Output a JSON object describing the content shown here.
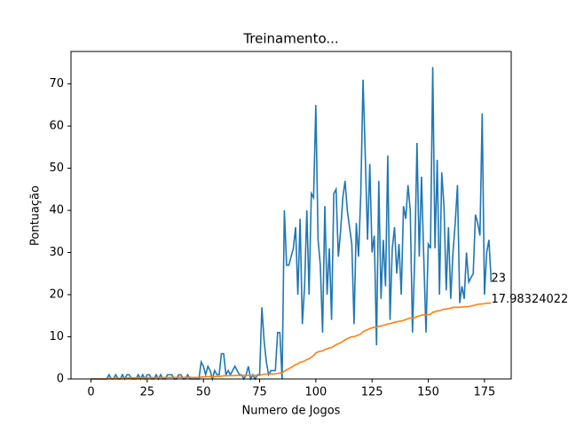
{
  "chart_data": {
    "type": "line",
    "title": "Treinamento...",
    "xlabel": "Numero de Jogos",
    "ylabel": "Pontuação",
    "x": [
      0,
      1,
      2,
      3,
      4,
      5,
      6,
      7,
      8,
      9,
      10,
      11,
      12,
      13,
      14,
      15,
      16,
      17,
      18,
      19,
      20,
      21,
      22,
      23,
      24,
      25,
      26,
      27,
      28,
      29,
      30,
      31,
      32,
      33,
      34,
      35,
      36,
      37,
      38,
      39,
      40,
      41,
      42,
      43,
      44,
      45,
      46,
      47,
      48,
      49,
      50,
      51,
      52,
      53,
      54,
      55,
      56,
      57,
      58,
      59,
      60,
      61,
      62,
      63,
      64,
      65,
      66,
      67,
      68,
      69,
      70,
      71,
      72,
      73,
      74,
      75,
      76,
      77,
      78,
      79,
      80,
      81,
      82,
      83,
      84,
      85,
      86,
      87,
      88,
      89,
      90,
      91,
      92,
      93,
      94,
      95,
      96,
      97,
      98,
      99,
      100,
      101,
      102,
      103,
      104,
      105,
      106,
      107,
      108,
      109,
      110,
      111,
      112,
      113,
      114,
      115,
      116,
      117,
      118,
      119,
      120,
      121,
      122,
      123,
      124,
      125,
      126,
      127,
      128,
      129,
      130,
      131,
      132,
      133,
      134,
      135,
      136,
      137,
      138,
      139,
      140,
      141,
      142,
      143,
      144,
      145,
      146,
      147,
      148,
      149,
      150,
      151,
      152,
      153,
      154,
      155,
      156,
      157,
      158,
      159,
      160,
      161,
      162,
      163,
      164,
      165,
      166,
      167,
      168,
      169,
      170,
      171,
      172,
      173,
      174,
      175,
      176,
      177,
      178
    ],
    "series": [
      {
        "color": "#1f77b4",
        "values": [
          0,
          0,
          0,
          0,
          0,
          0,
          0,
          0,
          1,
          0,
          0,
          1,
          0,
          0,
          1,
          0,
          1,
          1,
          0,
          0,
          0,
          1,
          0,
          1,
          0,
          1,
          1,
          0,
          0,
          1,
          0,
          1,
          0,
          0,
          1,
          1,
          1,
          0,
          0,
          1,
          1,
          0,
          0,
          1,
          0,
          0,
          0,
          0,
          0,
          4,
          3,
          1,
          3,
          2,
          0,
          2,
          1,
          1,
          6,
          6,
          1,
          2,
          1,
          2,
          3,
          2,
          1,
          1,
          0,
          1,
          3,
          0,
          1,
          0,
          1,
          1,
          17,
          9,
          4,
          1,
          2,
          2,
          2,
          11,
          11,
          0,
          40,
          27,
          27,
          29,
          31,
          36,
          20,
          38,
          13,
          22,
          40,
          20,
          44,
          43,
          65,
          33,
          27,
          11,
          41,
          20,
          31,
          14,
          44,
          45,
          29,
          35,
          43,
          47,
          40,
          36,
          32,
          13,
          37,
          29,
          44,
          71,
          53,
          33,
          51,
          30,
          34,
          8,
          47,
          19,
          33,
          22,
          53,
          14,
          31,
          36,
          25,
          32,
          20,
          41,
          38,
          46,
          40,
          11,
          29,
          56,
          29,
          48,
          29,
          11,
          32,
          31,
          74,
          31,
          52,
          20,
          49,
          41,
          21,
          36,
          19,
          30,
          37,
          46,
          18,
          22,
          19,
          30,
          23,
          24,
          25,
          39,
          37,
          34,
          63,
          20,
          30,
          33,
          23
        ]
      },
      {
        "color": "#ff7f0e",
        "values": [
          0,
          0,
          0,
          0,
          0,
          0,
          0,
          0,
          0.11,
          0.1,
          0.09,
          0.17,
          0.15,
          0.14,
          0.2,
          0.19,
          0.24,
          0.28,
          0.26,
          0.25,
          0.24,
          0.27,
          0.26,
          0.29,
          0.28,
          0.31,
          0.33,
          0.32,
          0.31,
          0.33,
          0.32,
          0.34,
          0.33,
          0.32,
          0.34,
          0.36,
          0.38,
          0.37,
          0.36,
          0.38,
          0.4,
          0.39,
          0.38,
          0.39,
          0.38,
          0.37,
          0.36,
          0.36,
          0.35,
          0.43,
          0.48,
          0.49,
          0.54,
          0.56,
          0.55,
          0.57,
          0.58,
          0.58,
          0.67,
          0.75,
          0.75,
          0.77,
          0.77,
          0.78,
          0.81,
          0.82,
          0.82,
          0.82,
          0.81,
          0.81,
          0.84,
          0.83,
          0.83,
          0.82,
          0.82,
          0.82,
          1.03,
          1.13,
          1.16,
          1.16,
          1.17,
          1.18,
          1.19,
          1.31,
          1.43,
          1.41,
          1.87,
          2.15,
          2.43,
          2.73,
          3.05,
          3.42,
          3.59,
          3.96,
          4.06,
          4.25,
          4.62,
          4.78,
          5.18,
          5.56,
          6.15,
          6.42,
          6.6,
          6.64,
          7.0,
          7.13,
          7.36,
          7.42,
          7.78,
          8.14,
          8.33,
          8.6,
          8.93,
          9.28,
          9.56,
          9.8,
          10.01,
          10.03,
          10.25,
          10.41,
          10.69,
          11.18,
          11.5,
          11.67,
          11.97,
          12.12,
          12.3,
          12.24,
          12.51,
          12.56,
          12.73,
          12.81,
          13.11,
          13.12,
          13.28,
          13.46,
          13.54,
          13.68,
          13.72,
          13.91,
          14.08,
          14.3,
          14.47,
          14.44,
          14.54,
          14.83,
          14.92,
          15.14,
          15.23,
          15.18,
          15.28,
          15.29,
          15.84,
          15.93,
          16.17,
          16.19,
          16.4,
          16.55,
          16.57,
          16.71,
          16.79,
          16.99,
          16.99,
          17.02,
          16.99,
          17.07,
          17.1,
          17.15,
          17.16,
          17.3,
          17.41,
          17.49,
          17.74,
          17.75,
          17.81,
          17.87,
          17.96,
          17.99,
          17.98324022
        ]
      }
    ],
    "xlim": [
      -8.9,
      186.9
    ],
    "xticks": [
      0,
      25,
      50,
      75,
      100,
      125,
      150,
      175
    ],
    "ylim": [
      0,
      77.7
    ],
    "yticks": [
      0,
      10,
      20,
      30,
      40,
      50,
      60,
      70
    ]
  }
}
